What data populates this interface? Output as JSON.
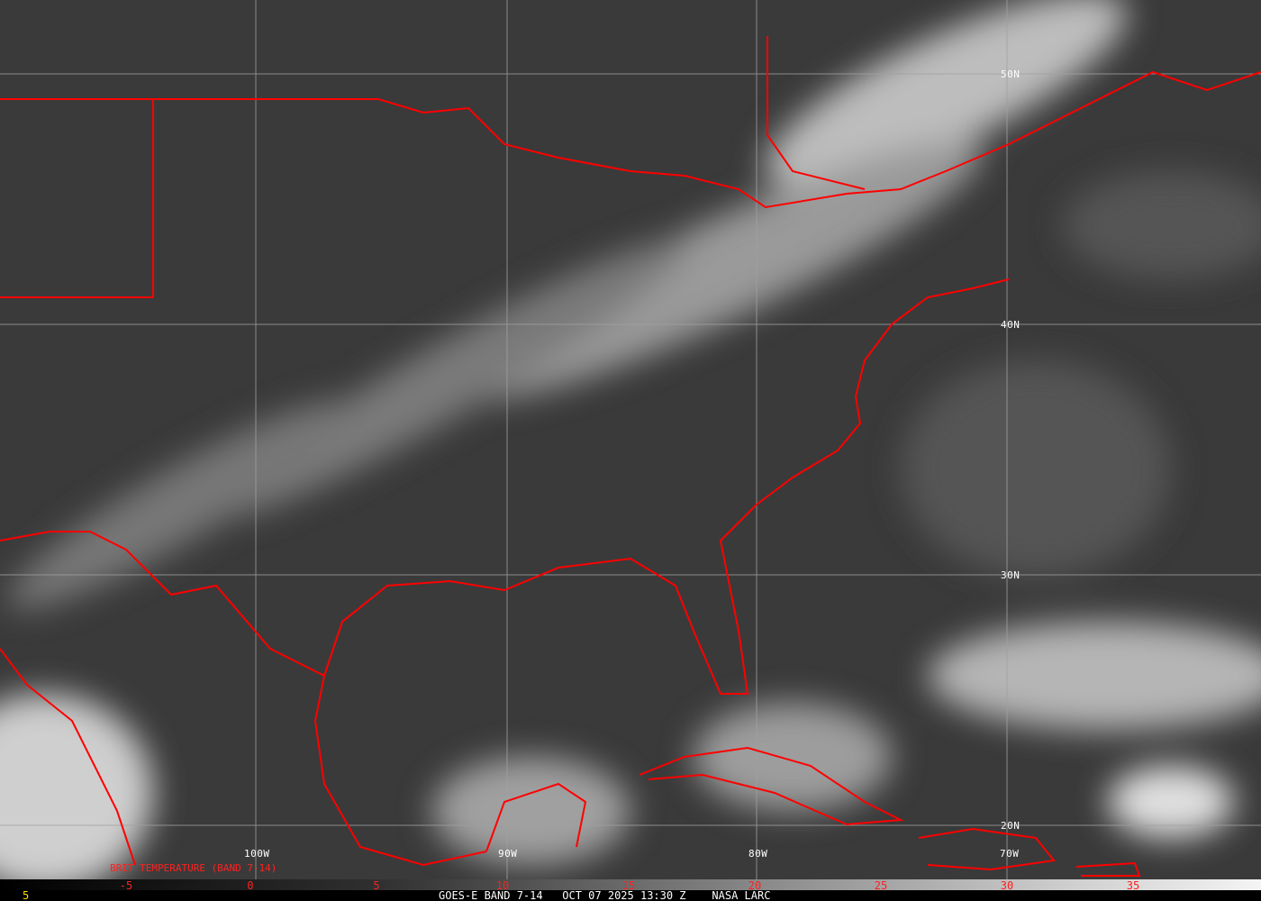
{
  "product": {
    "footer_text": "GOES-E BAND 7-14   OCT 07 2025 13:30 Z    NASA LARC",
    "footer_number": "5",
    "band_title": "BRIT TEMPERATURE (BAND 7-14)"
  },
  "latitude_labels": [
    "50N",
    "40N",
    "30N",
    "20N"
  ],
  "longitude_labels": [
    "100W",
    "90W",
    "80W",
    "70W"
  ],
  "color_scale": {
    "tick_labels": [
      "-5",
      "0",
      "5",
      "10",
      "15",
      "20",
      "25",
      "30",
      "35"
    ],
    "tick_color": "#ff2020"
  },
  "colors": {
    "boundaries": "#ff0000",
    "grid": "#a0a0a0",
    "background": "#3c3c3c"
  }
}
